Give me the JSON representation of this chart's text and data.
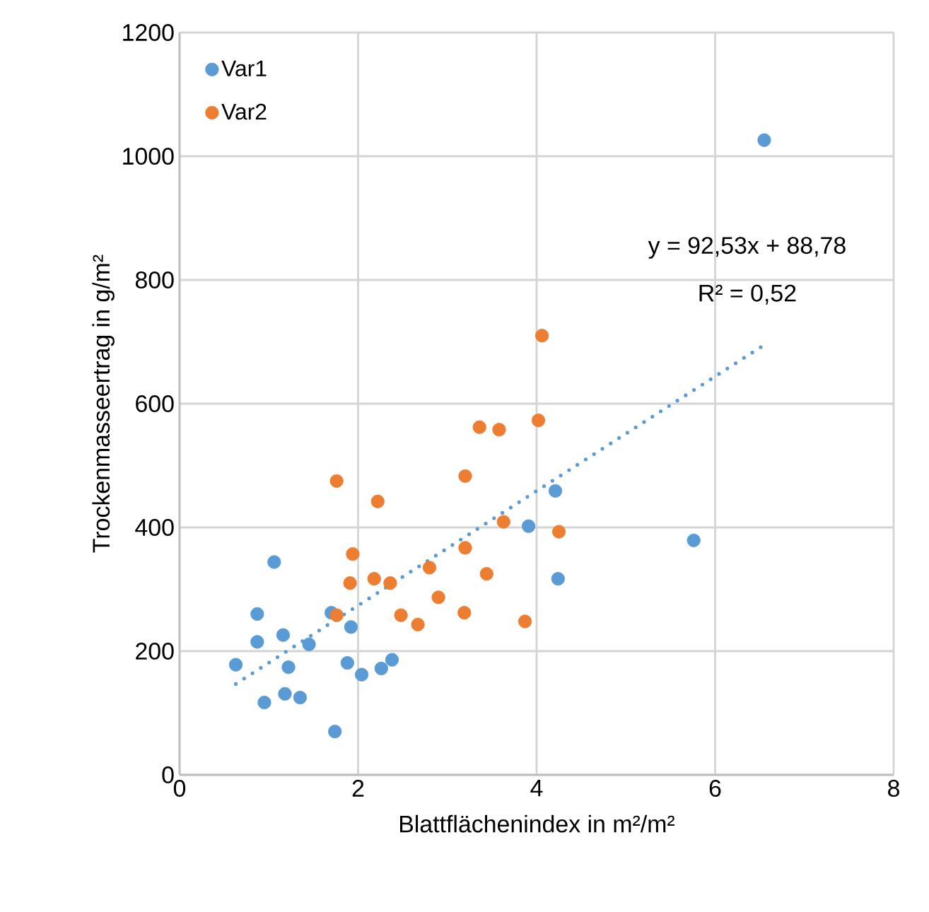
{
  "chart_data": {
    "type": "scatter",
    "xlabel": "Blattflächenindex in m²/m²",
    "ylabel": "Trockenmasseertrag in g/m²",
    "xlim": [
      0,
      8
    ],
    "ylim": [
      0,
      1200
    ],
    "xticks": [
      0,
      2,
      4,
      6,
      8
    ],
    "yticks": [
      0,
      200,
      400,
      600,
      800,
      1000,
      1200
    ],
    "grid": true,
    "legend": "top left",
    "marker": "circle",
    "annotations": [
      "y = 92,53x + 88,78",
      "R² = 0,52"
    ],
    "series": [
      {
        "name": "Var1",
        "color": "#5b9bd5",
        "x": [
          1.06,
          0.87,
          0.87,
          1.16,
          0.63,
          1.22,
          1.45,
          0.95,
          1.18,
          1.35,
          1.74,
          1.92,
          1.88,
          2.04,
          2.26,
          2.38,
          1.7,
          4.21,
          3.91,
          4.24,
          5.76,
          6.55
        ],
        "values": [
          344,
          260,
          215,
          226,
          178,
          174,
          211,
          117,
          131,
          125,
          70,
          239,
          181,
          162,
          172,
          186,
          262,
          459,
          402,
          317,
          379,
          1026
        ]
      },
      {
        "name": "Var2",
        "color": "#ed7d31",
        "x": [
          4.06,
          4.02,
          3.36,
          3.58,
          3.2,
          1.76,
          2.22,
          3.63,
          4.25,
          3.2,
          1.94,
          1.91,
          2.18,
          2.36,
          2.8,
          3.44,
          2.9,
          1.76,
          2.48,
          2.67,
          3.19,
          3.87
        ],
        "values": [
          710,
          573,
          562,
          558,
          483,
          475,
          442,
          409,
          393,
          367,
          357,
          310,
          317,
          310,
          335,
          325,
          287,
          258,
          258,
          243,
          262,
          248
        ]
      },
      {
        "type": "line",
        "color": "#5b9bd5",
        "marker": "none",
        "line_style": "dotted",
        "x": [
          0.63,
          6.55
        ],
        "values": [
          147,
          695
        ]
      }
    ]
  }
}
